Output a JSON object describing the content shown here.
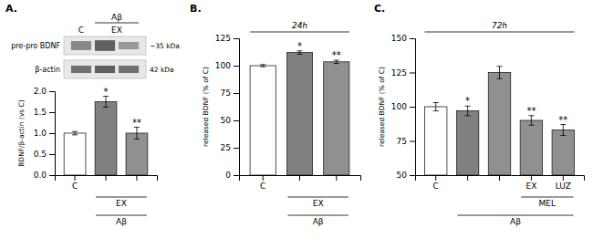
{
  "chart_data": [
    {
      "type": "bar",
      "title": "A.",
      "categories": [
        "C",
        null,
        null
      ],
      "values": [
        1.0,
        1.75,
        1.0
      ],
      "errors": [
        0.04,
        0.13,
        0.14
      ],
      "colors": [
        "white",
        "#808080",
        "#909090"
      ],
      "ylabel": "BDNF/β-actin (vs C)",
      "ylim": [
        0,
        2.0
      ],
      "yticks": [
        {
          "value": 0.0,
          "label": "0.0"
        },
        {
          "value": 0.5,
          "label": "0.5"
        },
        {
          "value": 1.0,
          "label": "1.0"
        },
        {
          "value": 1.5,
          "label": "1.5"
        },
        {
          "value": 2.0,
          "label": "2.0"
        }
      ],
      "groups": [
        {
          "label": "EX",
          "first": 1,
          "last": 2
        },
        {
          "label": "Aβ",
          "first": 1,
          "last": 2
        }
      ],
      "annotations": [
        {
          "text": "*",
          "index": 1
        },
        {
          "text": "**",
          "index": 2
        }
      ],
      "blot": {
        "rows": [
          {
            "label": "pre-pro BDNF",
            "size": "~35 kDa",
            "colors": [
              "#888888",
              "#606060",
              "#999999"
            ],
            "heights": [
              0.55,
              0.65,
              0.45
            ]
          },
          {
            "label": "β-actin",
            "size": "42 kDa",
            "colors": [
              "#707070",
              "#606060",
              "#707070"
            ],
            "heights": [
              0.45,
              0.45,
              0.45
            ]
          }
        ],
        "lanes": [
          {
            "label": "C",
            "first": 0,
            "last": 0
          },
          {
            "label": "EX",
            "first": 1,
            "last": 2
          }
        ],
        "bracket": {
          "label": "Aβ",
          "first": 1,
          "last": 2
        }
      }
    },
    {
      "type": "bar",
      "title": "B.",
      "subtitle": "24h",
      "categories": [
        "C",
        null,
        null
      ],
      "values": [
        100.0,
        112.0,
        103.5
      ],
      "errors": [
        1.0,
        1.5,
        1.5
      ],
      "colors": [
        "white",
        "#808080",
        "#909090"
      ],
      "ylabel": "released BDNF (% of C)",
      "ylim": [
        0,
        125
      ],
      "yticks": [
        0,
        25,
        50,
        75,
        100,
        125
      ],
      "groups": [
        {
          "label": "EX",
          "first": 1,
          "last": 2
        },
        {
          "label": "Aβ",
          "first": 1,
          "last": 2
        }
      ],
      "annotations": [
        {
          "text": "*",
          "index": 1
        },
        {
          "text": "**",
          "index": 2
        }
      ]
    },
    {
      "type": "bar",
      "title": "C.",
      "subtitle": "72h",
      "categories": [
        "C",
        null,
        null,
        "EX",
        "LUZ"
      ],
      "values": [
        100.0,
        97.0,
        125.0,
        90.0,
        83.0
      ],
      "errors": [
        3.0,
        3.5,
        4.5,
        3.5,
        4.0
      ],
      "colors": [
        "white",
        "#808080",
        "#909090",
        "#909090",
        "#909090"
      ],
      "ylabel": "released BDNF (% of C)",
      "ylim": [
        50,
        150
      ],
      "yticks": [
        50,
        75,
        100,
        125,
        150
      ],
      "groups": [
        {
          "label": "MEL",
          "first": 3,
          "last": 4
        },
        {
          "label": "Aβ",
          "first": 1,
          "last": 4
        }
      ],
      "annotations": [
        {
          "text": "*",
          "index": 1
        },
        {
          "text": "**",
          "index": 3
        },
        {
          "text": "**",
          "index": 4
        }
      ]
    }
  ]
}
